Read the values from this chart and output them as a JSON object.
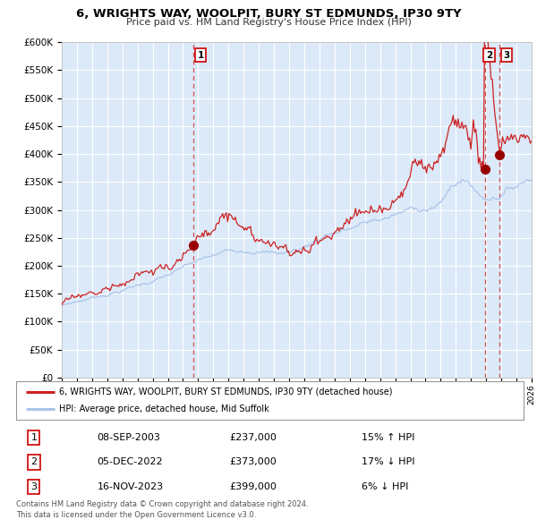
{
  "title": "6, WRIGHTS WAY, WOOLPIT, BURY ST EDMUNDS, IP30 9TY",
  "subtitle": "Price paid vs. HM Land Registry's House Price Index (HPI)",
  "x_start_year": 1995,
  "x_end_year": 2026,
  "ylim": [
    0,
    600000
  ],
  "yticks": [
    0,
    50000,
    100000,
    150000,
    200000,
    250000,
    300000,
    350000,
    400000,
    450000,
    500000,
    550000,
    600000
  ],
  "background_color": "#ffffff",
  "plot_bg_color": "#dce9f8",
  "grid_color": "#ffffff",
  "hpi_line_color": "#aac4e8",
  "price_line_color": "#cc2222",
  "dot_color": "#990000",
  "vline_color": "#cc3333",
  "legend_label_price": "6, WRIGHTS WAY, WOOLPIT, BURY ST EDMUNDS, IP30 9TY (detached house)",
  "legend_label_hpi": "HPI: Average price, detached house, Mid Suffolk",
  "t_years": [
    2003.69,
    2022.92,
    2023.88
  ],
  "t_prices": [
    237000,
    373000,
    399000
  ],
  "t_nums": [
    1,
    2,
    3
  ],
  "footer": "Contains HM Land Registry data © Crown copyright and database right 2024.\nThis data is licensed under the Open Government Licence v3.0.",
  "table_rows": [
    [
      "1",
      "08-SEP-2003",
      "£237,000",
      "15% ↑ HPI"
    ],
    [
      "2",
      "05-DEC-2022",
      "£373,000",
      "17% ↓ HPI"
    ],
    [
      "3",
      "16-NOV-2023",
      "£399,000",
      "6% ↓ HPI"
    ]
  ]
}
